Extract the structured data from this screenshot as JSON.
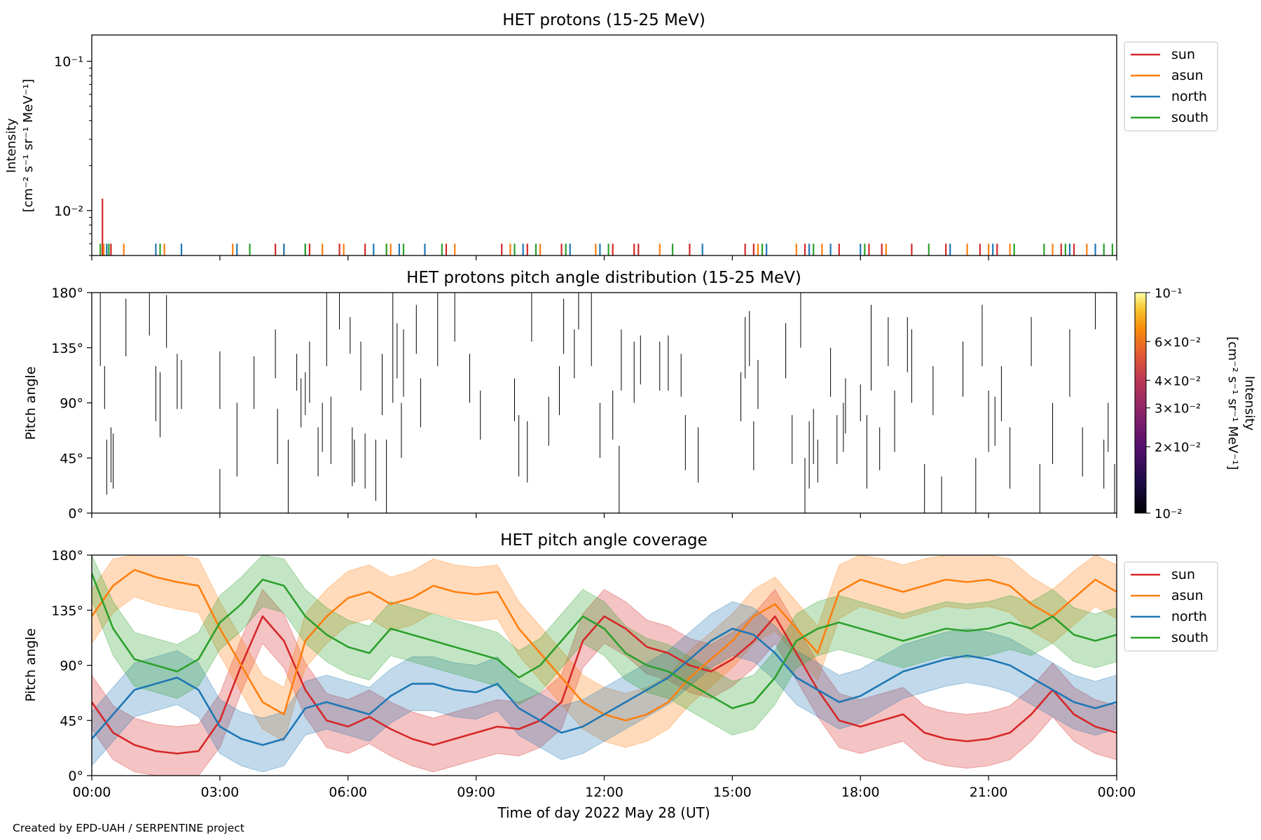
{
  "figure": {
    "credit": "Created by EPD-UAH / SERPENTINE project",
    "xlabel": "Time of day 2022 May 28 (UT)",
    "xticks": [
      "00:00",
      "03:00",
      "06:00",
      "09:00",
      "12:00",
      "15:00",
      "18:00",
      "21:00",
      "00:00"
    ]
  },
  "colors": {
    "sun": "#d62728",
    "asun": "#ff7f0e",
    "north": "#1f77b4",
    "south": "#2ca02c"
  },
  "chart_data": [
    {
      "type": "line",
      "title": "HET protons (15-25 MeV)",
      "ylabel_line1": "Intensity",
      "ylabel_line2": "[cm⁻² s⁻¹ sr⁻¹ MeV⁻¹]",
      "yscale": "log",
      "ylim": [
        0.005,
        0.15
      ],
      "xlim_hours": [
        0,
        24
      ],
      "yticks": [
        {
          "value": 0.1,
          "label": "10⁻¹"
        },
        {
          "value": 0.01,
          "label": "10⁻²"
        }
      ],
      "legend": [
        "sun",
        "asun",
        "north",
        "south"
      ],
      "legend_placement": "outside-right-top",
      "series": [
        {
          "name": "sun",
          "x": [
            0.25,
            0.45,
            4.3,
            5.1,
            5.8,
            6.4,
            6.9,
            8.3,
            9.6,
            10.2,
            11.0,
            12.2,
            12.7,
            12.8,
            14.0,
            15.3,
            15.5,
            16.7,
            17.5,
            18.2,
            18.5,
            19.2,
            20.0,
            20.8,
            21.2,
            22.7,
            23.0
          ],
          "y": [
            0.012,
            0.006,
            0.006,
            0.006,
            0.006,
            0.006,
            0.006,
            0.006,
            0.006,
            0.006,
            0.006,
            0.006,
            0.006,
            0.006,
            0.006,
            0.006,
            0.006,
            0.006,
            0.006,
            0.006,
            0.006,
            0.006,
            0.006,
            0.006,
            0.006,
            0.006,
            0.006
          ]
        },
        {
          "name": "asun",
          "x": [
            0.28,
            0.75,
            1.7,
            3.3,
            4.5,
            5.4,
            5.9,
            7.0,
            8.5,
            9.8,
            10.5,
            11.8,
            13.3,
            15.6,
            16.5,
            17.1,
            18.6,
            20.5,
            21.0,
            21.5,
            22.5,
            23.3
          ],
          "y": [
            0.006,
            0.006,
            0.006,
            0.006,
            0.006,
            0.006,
            0.006,
            0.006,
            0.006,
            0.006,
            0.006,
            0.006,
            0.006,
            0.006,
            0.006,
            0.006,
            0.006,
            0.006,
            0.006,
            0.006,
            0.006,
            0.006
          ]
        },
        {
          "name": "north",
          "x": [
            0.35,
            1.5,
            2.1,
            3.4,
            4.5,
            5.0,
            6.6,
            7.2,
            7.8,
            10.1,
            11.2,
            11.9,
            14.3,
            15.8,
            16.8,
            17.3,
            18.0,
            20.1,
            21.1,
            22.9,
            23.5
          ],
          "y": [
            0.006,
            0.006,
            0.006,
            0.006,
            0.006,
            0.006,
            0.006,
            0.006,
            0.006,
            0.006,
            0.006,
            0.006,
            0.006,
            0.006,
            0.006,
            0.006,
            0.006,
            0.006,
            0.006,
            0.006,
            0.006
          ]
        },
        {
          "name": "south",
          "x": [
            0.2,
            0.4,
            1.6,
            3.7,
            5.0,
            6.9,
            7.3,
            8.2,
            9.9,
            10.4,
            11.1,
            12.1,
            13.6,
            15.7,
            16.9,
            18.1,
            19.6,
            21.6,
            22.3,
            22.8,
            23.7,
            23.9
          ],
          "y": [
            0.006,
            0.006,
            0.006,
            0.006,
            0.006,
            0.006,
            0.006,
            0.006,
            0.006,
            0.006,
            0.006,
            0.006,
            0.006,
            0.006,
            0.006,
            0.006,
            0.006,
            0.006,
            0.006,
            0.006,
            0.006,
            0.006
          ]
        }
      ]
    },
    {
      "type": "heatmap",
      "title": "HET protons pitch angle distribution (15-25 MeV)",
      "ylabel": "Pitch angle",
      "ylim": [
        0,
        180
      ],
      "xlim_hours": [
        0,
        24
      ],
      "yticks": [
        "0°",
        "45°",
        "90°",
        "135°",
        "180°"
      ],
      "colorbar": {
        "label_line1": "Intensity",
        "label_line2": "[cm⁻² s⁻¹ sr⁻¹ MeV⁻¹]",
        "scale": "log",
        "range": [
          0.01,
          0.1
        ],
        "ticks": [
          {
            "value": 0.1,
            "label": "10⁻¹"
          },
          {
            "value": 0.06,
            "label": "6×10⁻²"
          },
          {
            "value": 0.04,
            "label": "4×10⁻²"
          },
          {
            "value": 0.03,
            "label": "3×10⁻²"
          },
          {
            "value": 0.02,
            "label": "2×10⁻²"
          },
          {
            "value": 0.01,
            "label": "10⁻²"
          }
        ]
      },
      "segments": [
        {
          "t": 0.2,
          "lo": 120,
          "hi": 180
        },
        {
          "t": 0.3,
          "lo": 85,
          "hi": 120
        },
        {
          "t": 0.35,
          "lo": 15,
          "hi": 60
        },
        {
          "t": 0.45,
          "lo": 25,
          "hi": 70
        },
        {
          "t": 0.5,
          "lo": 20,
          "hi": 65
        },
        {
          "t": 0.8,
          "lo": 128,
          "hi": 175
        },
        {
          "t": 1.35,
          "lo": 145,
          "hi": 180
        },
        {
          "t": 1.5,
          "lo": 75,
          "hi": 120
        },
        {
          "t": 1.6,
          "lo": 62,
          "hi": 115
        },
        {
          "t": 1.75,
          "lo": 135,
          "hi": 178
        },
        {
          "t": 2.0,
          "lo": 85,
          "hi": 130
        },
        {
          "t": 2.1,
          "lo": 85,
          "hi": 125
        },
        {
          "t": 3.0,
          "lo": 0,
          "hi": 36
        },
        {
          "t": 3.0,
          "lo": 85,
          "hi": 132
        },
        {
          "t": 3.4,
          "lo": 30,
          "hi": 90
        },
        {
          "t": 3.8,
          "lo": 85,
          "hi": 128
        },
        {
          "t": 4.3,
          "lo": 110,
          "hi": 150
        },
        {
          "t": 4.35,
          "lo": 40,
          "hi": 85
        },
        {
          "t": 4.6,
          "lo": 0,
          "hi": 60
        },
        {
          "t": 4.8,
          "lo": 100,
          "hi": 130
        },
        {
          "t": 4.9,
          "lo": 70,
          "hi": 110
        },
        {
          "t": 5.0,
          "lo": 80,
          "hi": 115
        },
        {
          "t": 5.1,
          "lo": 90,
          "hi": 140
        },
        {
          "t": 5.3,
          "lo": 30,
          "hi": 70
        },
        {
          "t": 5.4,
          "lo": 50,
          "hi": 90
        },
        {
          "t": 5.5,
          "lo": 120,
          "hi": 180
        },
        {
          "t": 5.6,
          "lo": 40,
          "hi": 95
        },
        {
          "t": 5.8,
          "lo": 150,
          "hi": 180
        },
        {
          "t": 6.05,
          "lo": 130,
          "hi": 160
        },
        {
          "t": 6.1,
          "lo": 22,
          "hi": 70
        },
        {
          "t": 6.15,
          "lo": 25,
          "hi": 60
        },
        {
          "t": 6.3,
          "lo": 100,
          "hi": 140
        },
        {
          "t": 6.4,
          "lo": 20,
          "hi": 65
        },
        {
          "t": 6.65,
          "lo": 10,
          "hi": 60
        },
        {
          "t": 6.8,
          "lo": 80,
          "hi": 130
        },
        {
          "t": 6.9,
          "lo": 0,
          "hi": 60
        },
        {
          "t": 7.05,
          "lo": 90,
          "hi": 180
        },
        {
          "t": 7.15,
          "lo": 110,
          "hi": 155
        },
        {
          "t": 7.25,
          "lo": 45,
          "hi": 90
        },
        {
          "t": 7.3,
          "lo": 95,
          "hi": 150
        },
        {
          "t": 7.6,
          "lo": 130,
          "hi": 170
        },
        {
          "t": 7.7,
          "lo": 70,
          "hi": 110
        },
        {
          "t": 8.1,
          "lo": 120,
          "hi": 180
        },
        {
          "t": 8.5,
          "lo": 140,
          "hi": 180
        },
        {
          "t": 8.85,
          "lo": 90,
          "hi": 130
        },
        {
          "t": 9.1,
          "lo": 60,
          "hi": 100
        },
        {
          "t": 9.9,
          "lo": 75,
          "hi": 110
        },
        {
          "t": 10.0,
          "lo": 30,
          "hi": 80
        },
        {
          "t": 10.2,
          "lo": 25,
          "hi": 75
        },
        {
          "t": 10.3,
          "lo": 140,
          "hi": 180
        },
        {
          "t": 10.7,
          "lo": 55,
          "hi": 95
        },
        {
          "t": 10.95,
          "lo": 80,
          "hi": 120
        },
        {
          "t": 11.05,
          "lo": 130,
          "hi": 175
        },
        {
          "t": 11.3,
          "lo": 110,
          "hi": 150
        },
        {
          "t": 11.4,
          "lo": 150,
          "hi": 180
        },
        {
          "t": 11.7,
          "lo": 120,
          "hi": 180
        },
        {
          "t": 11.9,
          "lo": 45,
          "hi": 90
        },
        {
          "t": 12.2,
          "lo": 60,
          "hi": 100
        },
        {
          "t": 12.35,
          "lo": 0,
          "hi": 55
        },
        {
          "t": 12.4,
          "lo": 100,
          "hi": 150
        },
        {
          "t": 12.7,
          "lo": 90,
          "hi": 140
        },
        {
          "t": 12.85,
          "lo": 105,
          "hi": 145
        },
        {
          "t": 13.3,
          "lo": 100,
          "hi": 140
        },
        {
          "t": 13.5,
          "lo": 100,
          "hi": 145
        },
        {
          "t": 13.8,
          "lo": 95,
          "hi": 130
        },
        {
          "t": 13.9,
          "lo": 35,
          "hi": 80
        },
        {
          "t": 14.2,
          "lo": 25,
          "hi": 70
        },
        {
          "t": 15.2,
          "lo": 75,
          "hi": 115
        },
        {
          "t": 15.3,
          "lo": 110,
          "hi": 160
        },
        {
          "t": 15.4,
          "lo": 120,
          "hi": 165
        },
        {
          "t": 15.5,
          "lo": 35,
          "hi": 75
        },
        {
          "t": 15.6,
          "lo": 85,
          "hi": 125
        },
        {
          "t": 16.25,
          "lo": 110,
          "hi": 155
        },
        {
          "t": 16.4,
          "lo": 40,
          "hi": 80
        },
        {
          "t": 16.6,
          "lo": 135,
          "hi": 180
        },
        {
          "t": 16.7,
          "lo": 0,
          "hi": 45
        },
        {
          "t": 16.8,
          "lo": 20,
          "hi": 75
        },
        {
          "t": 16.9,
          "lo": 40,
          "hi": 85
        },
        {
          "t": 17.0,
          "lo": 25,
          "hi": 60
        },
        {
          "t": 17.3,
          "lo": 95,
          "hi": 135
        },
        {
          "t": 17.45,
          "lo": 40,
          "hi": 80
        },
        {
          "t": 17.6,
          "lo": 50,
          "hi": 90
        },
        {
          "t": 17.65,
          "lo": 65,
          "hi": 110
        },
        {
          "t": 18.0,
          "lo": 75,
          "hi": 105
        },
        {
          "t": 18.15,
          "lo": 20,
          "hi": 80
        },
        {
          "t": 18.25,
          "lo": 100,
          "hi": 170
        },
        {
          "t": 18.45,
          "lo": 35,
          "hi": 70
        },
        {
          "t": 18.65,
          "lo": 120,
          "hi": 160
        },
        {
          "t": 18.8,
          "lo": 50,
          "hi": 100
        },
        {
          "t": 19.1,
          "lo": 115,
          "hi": 160
        },
        {
          "t": 19.2,
          "lo": 90,
          "hi": 150
        },
        {
          "t": 19.5,
          "lo": 0,
          "hi": 40
        },
        {
          "t": 19.7,
          "lo": 80,
          "hi": 120
        },
        {
          "t": 19.9,
          "lo": 0,
          "hi": 30
        },
        {
          "t": 20.4,
          "lo": 95,
          "hi": 140
        },
        {
          "t": 20.7,
          "lo": 0,
          "hi": 45
        },
        {
          "t": 20.85,
          "lo": 120,
          "hi": 170
        },
        {
          "t": 21.0,
          "lo": 50,
          "hi": 100
        },
        {
          "t": 21.15,
          "lo": 55,
          "hi": 95
        },
        {
          "t": 21.3,
          "lo": 75,
          "hi": 120
        },
        {
          "t": 21.5,
          "lo": 20,
          "hi": 70
        },
        {
          "t": 22.0,
          "lo": 120,
          "hi": 160
        },
        {
          "t": 22.2,
          "lo": 0,
          "hi": 40
        },
        {
          "t": 22.5,
          "lo": 40,
          "hi": 90
        },
        {
          "t": 22.9,
          "lo": 95,
          "hi": 150
        },
        {
          "t": 23.2,
          "lo": 30,
          "hi": 70
        },
        {
          "t": 23.5,
          "lo": 150,
          "hi": 180
        },
        {
          "t": 23.7,
          "lo": 20,
          "hi": 60
        },
        {
          "t": 23.8,
          "lo": 50,
          "hi": 90
        },
        {
          "t": 23.95,
          "lo": 0,
          "hi": 40
        }
      ]
    },
    {
      "type": "area",
      "title": "HET pitch angle coverage",
      "ylabel": "Pitch angle",
      "ylim": [
        0,
        180
      ],
      "xlim_hours": [
        0,
        24
      ],
      "yticks": [
        "0°",
        "45°",
        "90°",
        "135°",
        "180°"
      ],
      "legend": [
        "sun",
        "asun",
        "north",
        "south"
      ],
      "legend_placement": "outside-right-top",
      "x": [
        0,
        0.5,
        1,
        1.5,
        2,
        2.5,
        3,
        3.5,
        4,
        4.5,
        5,
        5.5,
        6,
        6.5,
        7,
        7.5,
        8,
        8.5,
        9,
        9.5,
        10,
        10.5,
        11,
        11.5,
        12,
        12.5,
        13,
        13.5,
        14,
        14.5,
        15,
        15.5,
        16,
        16.5,
        17,
        17.5,
        18,
        18.5,
        19,
        19.5,
        20,
        20.5,
        21,
        21.5,
        22,
        22.5,
        23,
        23.5,
        24
      ],
      "series": [
        {
          "name": "sun",
          "halfwidth": 22,
          "values": [
            60,
            35,
            25,
            20,
            18,
            20,
            45,
            90,
            130,
            110,
            70,
            45,
            40,
            48,
            38,
            30,
            25,
            30,
            35,
            40,
            38,
            45,
            60,
            110,
            130,
            120,
            105,
            100,
            90,
            85,
            95,
            110,
            130,
            100,
            70,
            45,
            40,
            45,
            50,
            35,
            30,
            28,
            30,
            35,
            50,
            70,
            50,
            40,
            35
          ]
        },
        {
          "name": "asun",
          "halfwidth": 22,
          "values": [
            130,
            155,
            168,
            162,
            158,
            155,
            120,
            90,
            60,
            50,
            110,
            130,
            145,
            150,
            140,
            145,
            155,
            150,
            148,
            150,
            120,
            100,
            80,
            60,
            50,
            45,
            50,
            60,
            80,
            95,
            110,
            130,
            140,
            120,
            100,
            150,
            160,
            155,
            150,
            155,
            160,
            158,
            160,
            155,
            140,
            130,
            145,
            160,
            150
          ]
        },
        {
          "name": "north",
          "halfwidth": 22,
          "values": [
            30,
            50,
            70,
            75,
            80,
            70,
            40,
            30,
            25,
            30,
            55,
            60,
            55,
            50,
            65,
            75,
            75,
            70,
            68,
            75,
            55,
            45,
            35,
            40,
            50,
            60,
            70,
            80,
            95,
            110,
            120,
            115,
            100,
            80,
            70,
            60,
            65,
            75,
            85,
            90,
            95,
            98,
            95,
            90,
            80,
            70,
            60,
            55,
            60
          ]
        },
        {
          "name": "south",
          "halfwidth": 22,
          "values": [
            165,
            120,
            95,
            90,
            85,
            95,
            125,
            140,
            160,
            155,
            130,
            115,
            105,
            100,
            120,
            115,
            110,
            105,
            100,
            95,
            80,
            90,
            110,
            130,
            120,
            100,
            90,
            85,
            75,
            65,
            55,
            60,
            80,
            110,
            120,
            125,
            120,
            115,
            110,
            115,
            120,
            118,
            120,
            125,
            120,
            130,
            115,
            110,
            115
          ]
        }
      ]
    }
  ]
}
